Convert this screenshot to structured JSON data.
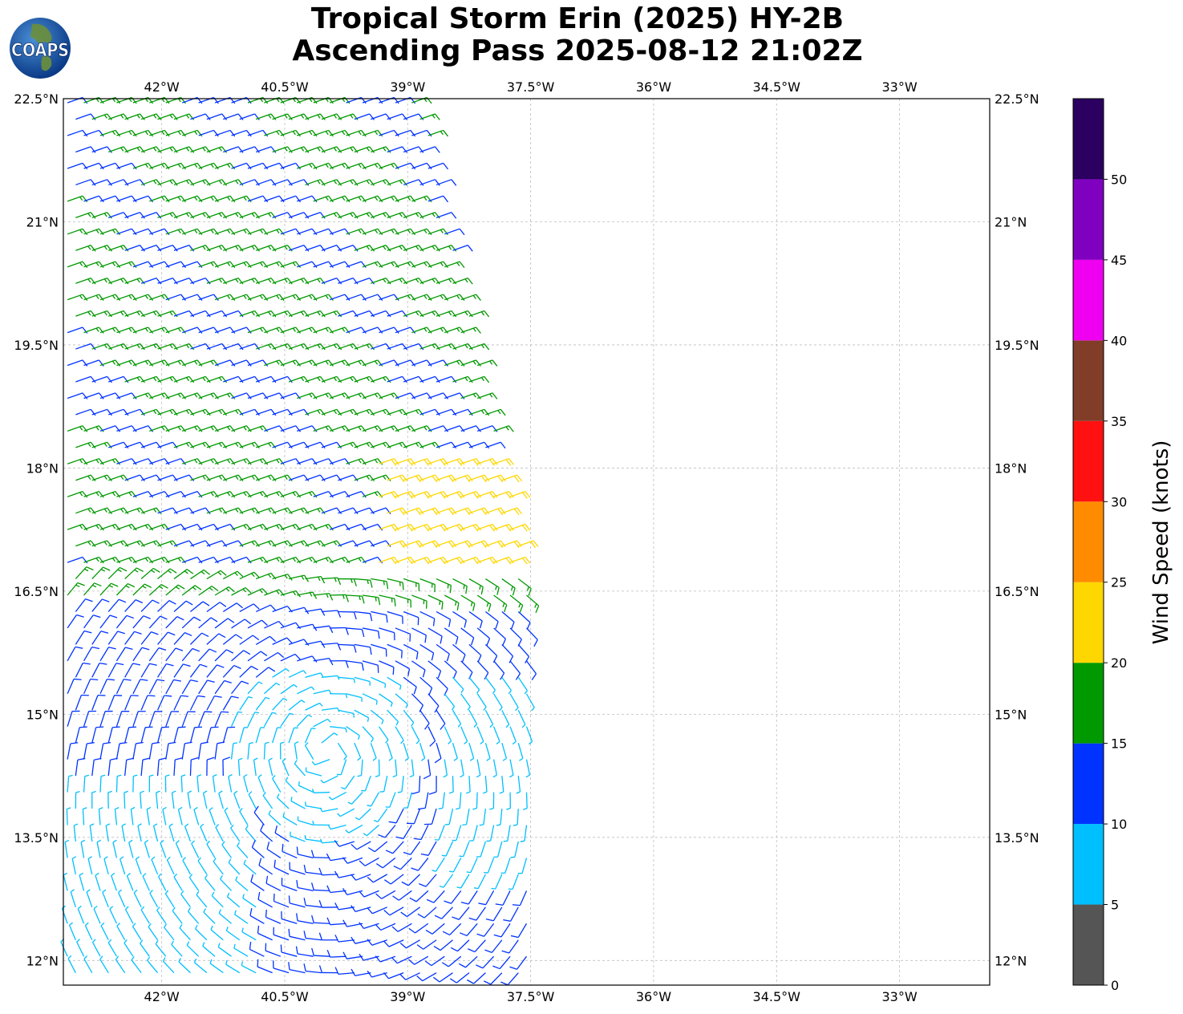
{
  "header": {
    "title_line1": "Tropical Storm Erin (2025) HY-2B",
    "title_line2": "Ascending Pass 2025-08-12 21:02Z",
    "logo_text": "COAPS"
  },
  "map": {
    "lon_range": [
      -43.2,
      -31.9
    ],
    "lat_range": [
      11.7,
      22.5
    ],
    "x_tick_labels": [
      {
        "lon": -42.0,
        "label": "42°W"
      },
      {
        "lon": -40.5,
        "label": "40.5°W"
      },
      {
        "lon": -39.0,
        "label": "39°W"
      },
      {
        "lon": -37.5,
        "label": "37.5°W"
      },
      {
        "lon": -36.0,
        "label": "36°W"
      },
      {
        "lon": -34.5,
        "label": "34.5°W"
      },
      {
        "lon": -33.0,
        "label": "33°W"
      }
    ],
    "y_tick_labels": [
      {
        "lat": 22.5,
        "label": "22.5°N"
      },
      {
        "lat": 21.0,
        "label": "21°N"
      },
      {
        "lat": 19.5,
        "label": "19.5°N"
      },
      {
        "lat": 18.0,
        "label": "18°N"
      },
      {
        "lat": 16.5,
        "label": "16.5°N"
      },
      {
        "lat": 15.0,
        "label": "15°N"
      },
      {
        "lat": 13.5,
        "label": "13.5°N"
      },
      {
        "lat": 12.0,
        "label": "12°N"
      }
    ],
    "gridlines": true,
    "storm_center_approx": {
      "lon": -40.0,
      "lat": 14.6
    },
    "barb_field": "wind barbs (knots), swath west of ~37.5°W"
  },
  "colorbar": {
    "title": "Wind Speed (knots)",
    "bins": [
      {
        "min": 0,
        "max": 5,
        "color": "#555555"
      },
      {
        "min": 5,
        "max": 10,
        "color": "#00bfff"
      },
      {
        "min": 10,
        "max": 15,
        "color": "#0033ff"
      },
      {
        "min": 15,
        "max": 20,
        "color": "#009900"
      },
      {
        "min": 20,
        "max": 25,
        "color": "#ffd700"
      },
      {
        "min": 25,
        "max": 30,
        "color": "#ff8c00"
      },
      {
        "min": 30,
        "max": 35,
        "color": "#ff1111"
      },
      {
        "min": 35,
        "max": 40,
        "color": "#823d29"
      },
      {
        "min": 40,
        "max": 45,
        "color": "#f000f0"
      },
      {
        "min": 45,
        "max": 50,
        "color": "#8000c0"
      },
      {
        "min": 50,
        "max": 55,
        "color": "#2b0060"
      }
    ],
    "tick_labels": [
      "0",
      "5",
      "10",
      "15",
      "20",
      "25",
      "30",
      "35",
      "40",
      "45",
      "50"
    ]
  }
}
